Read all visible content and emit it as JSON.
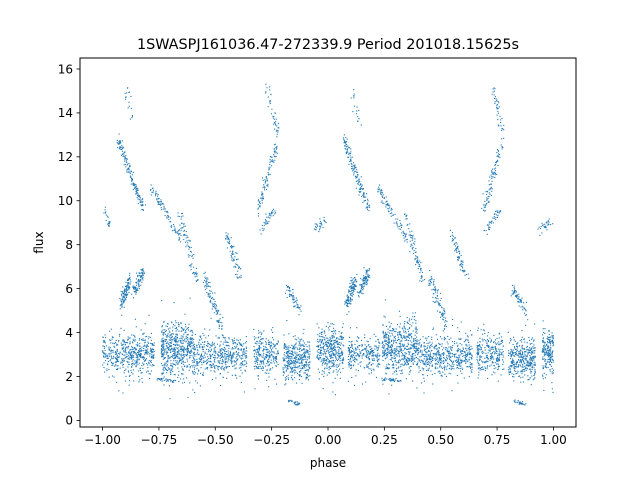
{
  "chart_data": {
    "type": "scatter",
    "title": "1SWASPJ161036.47-272339.9 Period 201018.15625s",
    "xlabel": "phase",
    "ylabel": "flux",
    "xlim": [
      -1.1,
      1.1
    ],
    "ylim": [
      -0.3,
      16.5
    ],
    "x_ticks": [
      -1.0,
      -0.75,
      -0.5,
      -0.25,
      0.0,
      0.25,
      0.5,
      0.75,
      1.0
    ],
    "x_tick_labels": [
      "−1.00",
      "−0.75",
      "−0.50",
      "−0.25",
      "0.00",
      "0.25",
      "0.50",
      "0.75",
      "1.00"
    ],
    "y_ticks": [
      0,
      2,
      4,
      6,
      8,
      10,
      12,
      14,
      16
    ],
    "y_tick_labels": [
      "0",
      "2",
      "4",
      "6",
      "8",
      "10",
      "12",
      "14",
      "16"
    ],
    "grid": false,
    "marker_color": "#1f77b4",
    "series": [
      {
        "components": [
          {
            "kind": "cloud",
            "x": [
              -1.0,
              -0.77
            ],
            "y": [
              2.0,
              4.0
            ],
            "n": 520
          },
          {
            "kind": "cloud",
            "x": [
              -0.74,
              -0.6
            ],
            "y": [
              2.0,
              4.6
            ],
            "n": 520
          },
          {
            "kind": "cloud",
            "x": [
              -0.6,
              -0.36
            ],
            "y": [
              2.0,
              3.9
            ],
            "n": 500
          },
          {
            "kind": "cloud",
            "x": [
              -0.33,
              -0.22
            ],
            "y": [
              2.1,
              4.0
            ],
            "n": 260
          },
          {
            "kind": "cloud",
            "x": [
              -0.2,
              -0.08
            ],
            "y": [
              1.8,
              3.8
            ],
            "n": 360
          },
          {
            "kind": "cloud",
            "x": [
              -0.05,
              0.07
            ],
            "y": [
              2.0,
              4.3
            ],
            "n": 380
          },
          {
            "kind": "cloud",
            "x": [
              0.09,
              0.23
            ],
            "y": [
              2.2,
              3.8
            ],
            "n": 260
          },
          {
            "kind": "cloud",
            "x": [
              0.24,
              0.4
            ],
            "y": [
              2.0,
              4.5
            ],
            "n": 520
          },
          {
            "kind": "cloud",
            "x": [
              0.4,
              0.64
            ],
            "y": [
              2.0,
              3.9
            ],
            "n": 520
          },
          {
            "kind": "cloud",
            "x": [
              0.66,
              0.78
            ],
            "y": [
              2.1,
              4.0
            ],
            "n": 260
          },
          {
            "kind": "cloud",
            "x": [
              0.8,
              0.92
            ],
            "y": [
              1.8,
              3.8
            ],
            "n": 360
          },
          {
            "kind": "cloud",
            "x": [
              0.95,
              1.0
            ],
            "y": [
              2.0,
              4.2
            ],
            "n": 200
          },
          {
            "kind": "strip",
            "x0": -0.92,
            "y0": 5.2,
            "x1": -0.88,
            "y1": 6.4,
            "spread": 0.35,
            "n": 120
          },
          {
            "kind": "strip",
            "x0": -0.86,
            "y0": 5.8,
            "x1": -0.82,
            "y1": 6.8,
            "spread": 0.3,
            "n": 90
          },
          {
            "kind": "strip",
            "x0": -0.93,
            "y0": 12.8,
            "x1": -0.82,
            "y1": 9.6,
            "spread": 0.25,
            "n": 150
          },
          {
            "kind": "strip",
            "x0": -0.9,
            "y0": 15.2,
            "x1": -0.86,
            "y1": 13.5,
            "spread": 0.25,
            "n": 18
          },
          {
            "kind": "strip",
            "x0": -0.99,
            "y0": 9.8,
            "x1": -0.97,
            "y1": 8.7,
            "spread": 0.2,
            "n": 20
          },
          {
            "kind": "strip",
            "x0": -0.78,
            "y0": 10.6,
            "x1": -0.65,
            "y1": 8.2,
            "spread": 0.2,
            "n": 90
          },
          {
            "kind": "strip",
            "x0": -0.66,
            "y0": 9.4,
            "x1": -0.58,
            "y1": 6.4,
            "spread": 0.3,
            "n": 80
          },
          {
            "kind": "strip",
            "x0": -0.55,
            "y0": 6.6,
            "x1": -0.47,
            "y1": 4.2,
            "spread": 0.35,
            "n": 90
          },
          {
            "kind": "strip",
            "x0": -0.45,
            "y0": 8.5,
            "x1": -0.39,
            "y1": 6.5,
            "spread": 0.25,
            "n": 70
          },
          {
            "kind": "strip",
            "x0": -0.31,
            "y0": 9.5,
            "x1": -0.23,
            "y1": 12.5,
            "spread": 0.35,
            "n": 90
          },
          {
            "kind": "strip",
            "x0": -0.27,
            "y0": 15.2,
            "x1": -0.22,
            "y1": 13.0,
            "spread": 0.3,
            "n": 40
          },
          {
            "kind": "strip",
            "x0": -0.3,
            "y0": 8.6,
            "x1": -0.24,
            "y1": 9.6,
            "spread": 0.2,
            "n": 40
          },
          {
            "kind": "strip",
            "x0": -0.18,
            "y0": 6.0,
            "x1": -0.12,
            "y1": 5.0,
            "spread": 0.3,
            "n": 60
          },
          {
            "kind": "strip",
            "x0": -0.06,
            "y0": 8.7,
            "x1": -0.01,
            "y1": 9.1,
            "spread": 0.2,
            "n": 30
          },
          {
            "kind": "strip",
            "x0": -0.17,
            "y0": 0.9,
            "x1": -0.12,
            "y1": 0.7,
            "spread": 0.07,
            "n": 25
          },
          {
            "kind": "strip",
            "x0": -0.76,
            "y0": 1.9,
            "x1": -0.68,
            "y1": 1.8,
            "spread": 0.08,
            "n": 35
          },
          {
            "kind": "strip",
            "x0": 0.08,
            "y0": 5.2,
            "x1": 0.12,
            "y1": 6.4,
            "spread": 0.35,
            "n": 120
          },
          {
            "kind": "strip",
            "x0": 0.14,
            "y0": 5.8,
            "x1": 0.18,
            "y1": 6.8,
            "spread": 0.3,
            "n": 90
          },
          {
            "kind": "strip",
            "x0": 0.07,
            "y0": 12.8,
            "x1": 0.18,
            "y1": 9.6,
            "spread": 0.25,
            "n": 150
          },
          {
            "kind": "strip",
            "x0": 0.1,
            "y0": 15.2,
            "x1": 0.14,
            "y1": 13.5,
            "spread": 0.25,
            "n": 18
          },
          {
            "kind": "strip",
            "x0": 0.22,
            "y0": 10.6,
            "x1": 0.35,
            "y1": 8.2,
            "spread": 0.2,
            "n": 90
          },
          {
            "kind": "strip",
            "x0": 0.34,
            "y0": 9.4,
            "x1": 0.42,
            "y1": 6.4,
            "spread": 0.3,
            "n": 80
          },
          {
            "kind": "strip",
            "x0": 0.45,
            "y0": 6.6,
            "x1": 0.53,
            "y1": 4.2,
            "spread": 0.35,
            "n": 90
          },
          {
            "kind": "strip",
            "x0": 0.55,
            "y0": 8.5,
            "x1": 0.61,
            "y1": 6.5,
            "spread": 0.25,
            "n": 70
          },
          {
            "kind": "strip",
            "x0": 0.69,
            "y0": 9.5,
            "x1": 0.77,
            "y1": 12.5,
            "spread": 0.35,
            "n": 90
          },
          {
            "kind": "strip",
            "x0": 0.73,
            "y0": 15.2,
            "x1": 0.78,
            "y1": 13.0,
            "spread": 0.3,
            "n": 40
          },
          {
            "kind": "strip",
            "x0": 0.7,
            "y0": 8.6,
            "x1": 0.76,
            "y1": 9.6,
            "spread": 0.2,
            "n": 40
          },
          {
            "kind": "strip",
            "x0": 0.82,
            "y0": 6.0,
            "x1": 0.88,
            "y1": 5.0,
            "spread": 0.3,
            "n": 60
          },
          {
            "kind": "strip",
            "x0": 0.94,
            "y0": 8.7,
            "x1": 0.99,
            "y1": 9.1,
            "spread": 0.2,
            "n": 30
          },
          {
            "kind": "strip",
            "x0": 0.83,
            "y0": 0.9,
            "x1": 0.88,
            "y1": 0.7,
            "spread": 0.07,
            "n": 25
          },
          {
            "kind": "strip",
            "x0": 0.24,
            "y0": 1.9,
            "x1": 0.32,
            "y1": 1.8,
            "spread": 0.08,
            "n": 35
          }
        ]
      }
    ]
  }
}
